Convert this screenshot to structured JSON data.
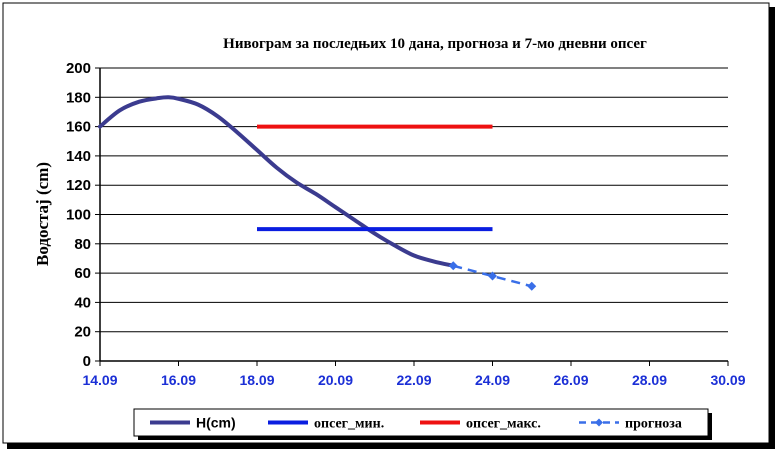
{
  "chart_data": {
    "type": "line",
    "title": "Нивограм за последњих 10 дана, прогноза и 7-мо дневни опсег",
    "xlabel": "",
    "ylabel": "Водостај (cm)",
    "xlim": [
      "14.09",
      "30.09"
    ],
    "ylim": [
      0,
      200
    ],
    "x_ticks": [
      "14.09",
      "16.09",
      "18.09",
      "20.09",
      "22.09",
      "24.09",
      "26.09",
      "28.09",
      "30.09"
    ],
    "y_ticks": [
      0,
      20,
      40,
      60,
      80,
      100,
      120,
      140,
      160,
      180,
      200
    ],
    "grid": true,
    "legend_position": "bottom",
    "series": [
      {
        "name": "H(cm)",
        "color": "#3b3b8f",
        "style": "solid-smooth",
        "x": [
          "14.09",
          "14.5",
          "15.0",
          "15.5",
          "15.75",
          "16.0",
          "16.5",
          "17.0",
          "17.5",
          "18.0",
          "18.5",
          "19.0",
          "19.5",
          "20.0",
          "20.5",
          "21.0",
          "21.5",
          "22.0",
          "22.5",
          "23.0"
        ],
        "values": [
          160,
          171,
          177,
          179.5,
          180,
          179,
          175,
          167,
          156,
          144,
          132,
          122,
          114,
          105,
          96,
          87,
          79,
          72,
          68,
          65
        ]
      },
      {
        "name": "опсег_мин.",
        "color": "#0a1de0",
        "style": "solid",
        "x": [
          "18.09",
          "24.09"
        ],
        "values": [
          90,
          90
        ]
      },
      {
        "name": "опсег_макс.",
        "color": "#ee1111",
        "style": "solid",
        "x": [
          "18.09",
          "24.09"
        ],
        "values": [
          160,
          160
        ]
      },
      {
        "name": "прогноза",
        "color": "#3a6fe8",
        "style": "dashed-markers",
        "x": [
          "23.09",
          "24.09",
          "25.09"
        ],
        "values": [
          65,
          58,
          51
        ]
      }
    ]
  }
}
